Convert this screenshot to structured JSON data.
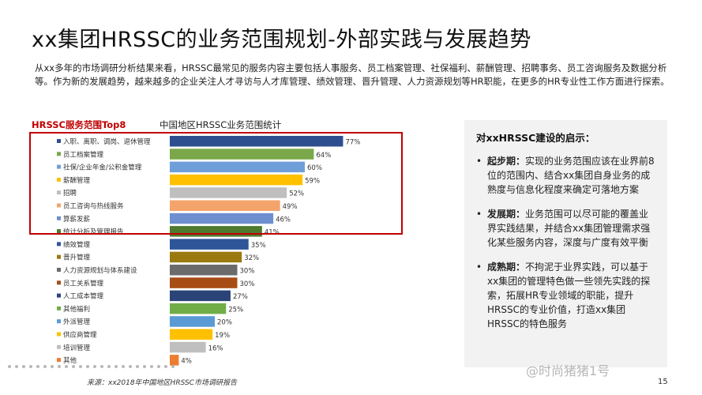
{
  "title": "xx集团HRSSC的业务范围规划-外部实践与发展趋势",
  "intro": "从xx多年的市场调研分析结果来看，HRSSC最常见的服务内容主要包括人事服务、员工档案管理、社保福利、薪酬管理、招聘事务、员工咨询服务及数据分析等。作为新的发展趋势，越来越多的企业关注人才寻访与人才库管理、绩效管理、晋升管理、人力资源规划等HR职能，在更多的HR专业性工作方面进行探索。",
  "top8_label": "HRSSC服务范围Top8",
  "chart_data": {
    "type": "bar",
    "orientation": "horizontal",
    "title": "中国地区HRSSC业务范围统计",
    "categories": [
      "入职、离职、调岗、退休管理",
      "员工档案管理",
      "社保/企业年金/公积金管理",
      "薪酬管理",
      "招聘",
      "员工咨询与热线服务",
      "算薪发薪",
      "统计分析及管理报告",
      "绩效管理",
      "晋升管理",
      "人力资源规划与体系建设",
      "员工关系管理",
      "人工成本管理",
      "其他福利",
      "外派管理",
      "供应商管理",
      "培训管理",
      "其他"
    ],
    "values": [
      77,
      64,
      60,
      59,
      52,
      49,
      46,
      41,
      35,
      32,
      30,
      30,
      27,
      25,
      20,
      19,
      16,
      4
    ],
    "value_labels": [
      "77%",
      "64%",
      "60%",
      "59%",
      "52%",
      "49%",
      "46%",
      "41%",
      "35%",
      "32%",
      "30%",
      "30%",
      "27%",
      "25%",
      "20%",
      "19%",
      "16%",
      "4%"
    ],
    "colors": [
      "#2e4f8f",
      "#7aa84a",
      "#6f9fd8",
      "#ffc000",
      "#bfbfbf",
      "#f4a46a",
      "#6d8fcf",
      "#4e7a2e",
      "#2e5597",
      "#9a7a10",
      "#6b6b6b",
      "#a84c16",
      "#2b4478",
      "#70ad47",
      "#5b9bd5",
      "#ffc000",
      "#bfbfbf",
      "#ed7d31"
    ],
    "xlim": [
      0,
      100
    ],
    "legend": "left",
    "grid": false
  },
  "panel": {
    "title": "对xxHRSSC建设的启示：",
    "bullet": "•",
    "items": [
      {
        "label": "起步期：",
        "text": "实现的业务范围应该在业界前8位的范围内、结合xx集团自身业务的成熟度与信息化程度来确定可落地方案"
      },
      {
        "label": "发展期：",
        "text": "业务范围可以尽可能的覆盖业界实践结果，并结合xx集团管理需求强化某些服务内容，深度与广度有效平衡"
      },
      {
        "label": "成熟期：",
        "text": "不拘泥于业界实践，可以基于xx集团的管理特色做一些领先实践的探索，拓展HR专业领域的职能，提升HRSSC的专业价值，打造xx集团HRSSC的特色服务"
      }
    ]
  },
  "source": "来源：xx2018年中国地区HRSSC市场调研报告",
  "watermark": "@时尚猪猪1号",
  "page_number": "15"
}
